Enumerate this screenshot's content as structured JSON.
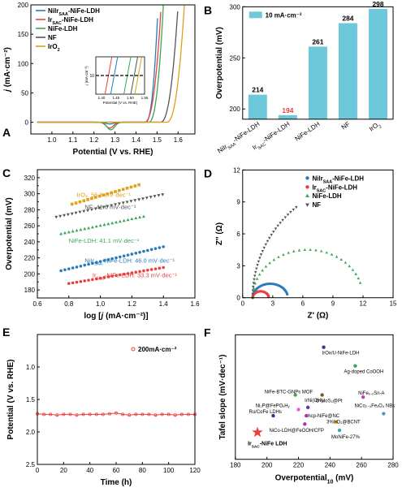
{
  "panel_letters": {
    "a": "A",
    "b": "B",
    "c": "C",
    "d": "D",
    "e": "E",
    "f": "F"
  },
  "chart_data": [
    {
      "id": "A",
      "type": "line",
      "xlabel": "Potential (V vs. RHE)",
      "ylabel": {
        "italic": "j",
        "unit": " (mA·cm⁻²)"
      },
      "xlim": [
        0.9,
        1.68
      ],
      "ylim": [
        -20,
        200
      ],
      "xticks": [
        1.0,
        1.1,
        1.2,
        1.3,
        1.4,
        1.5,
        1.6
      ],
      "yticks": [
        0,
        50,
        100,
        150,
        200
      ],
      "legend_position": "top-left",
      "series": [
        {
          "name": {
            "base": "NiIr",
            "sub": "SAA",
            "rest": "-NiFe-LDH"
          },
          "color": "#2a7ab8",
          "onset": 1.445,
          "x_end": 1.505,
          "dip": {
            "x": 1.275,
            "y": -3
          }
        },
        {
          "name": {
            "base": "Ir",
            "sub": "SAC",
            "rest": "-NiFe-LDH"
          },
          "color": "#e8413d",
          "onset": 1.44,
          "x_end": 1.52,
          "dip": {
            "x": 1.275,
            "y": -10
          }
        },
        {
          "name": {
            "base": "NiFe-LDH",
            "sub": "",
            "rest": ""
          },
          "color": "#3aa655",
          "onset": 1.46,
          "x_end": 1.53,
          "dip": {
            "x": 1.28,
            "y": -13
          }
        },
        {
          "name": {
            "base": "NF",
            "sub": "",
            "rest": ""
          },
          "color": "#555555",
          "onset": 1.515,
          "x_end": 1.6,
          "dip": null
        },
        {
          "name": {
            "base": "IrO",
            "sub": "2",
            "rest": ""
          },
          "color": "#e0a018",
          "onset": 1.545,
          "x_end": 1.63,
          "dip": null
        }
      ],
      "inset": {
        "xlabel": "Potential (V vs. RHE)",
        "ylabel": {
          "italic": "j",
          "unit": " (mA·cm⁻²)"
        },
        "xlim": [
          1.38,
          1.55
        ],
        "ylim": [
          0,
          20
        ],
        "xticks": [
          1.4,
          1.45,
          1.5,
          1.55
        ],
        "xtick_labels": [
          "1.40",
          "1.45",
          "1.50",
          "1.55"
        ],
        "ytick": 10,
        "dashed_level": 10,
        "crossings": [
          1.444,
          1.424,
          1.49,
          1.514,
          1.528
        ]
      }
    },
    {
      "id": "B",
      "type": "bar",
      "ylabel": "Overpotential (mV)",
      "ylim": [
        190,
        300
      ],
      "yticks": [
        200,
        250,
        300
      ],
      "legend": "10 mA·cm⁻²",
      "bar_color": "#6ec8dc",
      "categories": [
        {
          "base": "NiIr",
          "sub": "SAA",
          "rest": "-NiFe-LDH"
        },
        {
          "base": "Ir",
          "sub": "SAC",
          "rest": "-NiFe-LDH"
        },
        {
          "base": "NiFe-LDH",
          "sub": "",
          "rest": ""
        },
        {
          "base": "NF",
          "sub": "",
          "rest": ""
        },
        {
          "base": "IrO",
          "sub": "2",
          "rest": ""
        }
      ],
      "values": [
        214,
        194,
        261,
        284,
        298
      ],
      "value_labels": [
        "214",
        "194",
        "261",
        "284",
        "298"
      ],
      "highlight_index": 1,
      "highlight_color": "#e8413d"
    },
    {
      "id": "C",
      "type": "scatter",
      "xlabel": {
        "pre": "log [",
        "italic": "j",
        "post": " (mA·cm⁻²)]"
      },
      "ylabel": "Overpotential (mV)",
      "xlim": [
        0.6,
        1.6
      ],
      "ylim": [
        170,
        330
      ],
      "xticks": [
        0.6,
        0.8,
        1.0,
        1.2,
        1.4,
        1.6
      ],
      "yticks": [
        180,
        190,
        200,
        210,
        220,
        230,
        240,
        250,
        260,
        270,
        280,
        290,
        300,
        310,
        320,
        330
      ],
      "ytick_labels": [
        0,
        1,
        0,
        1,
        0,
        1,
        0,
        1,
        0,
        1,
        0,
        1,
        0,
        1,
        0,
        1
      ],
      "series": [
        {
          "name": "IrO₂",
          "annotation": "IrO₂: 56.8 mV·dec⁻¹",
          "color": "#e0a018",
          "marker": "square",
          "x_start": 0.82,
          "x_end": 1.25,
          "y_start": 287,
          "slope": 56.8,
          "label_x": 0.85,
          "label_y": 296
        },
        {
          "name": "NF",
          "annotation": "NF: 41.6 mV·dec⁻¹",
          "color": "#555555",
          "marker": "triangle-down",
          "x_start": 0.72,
          "x_end": 1.4,
          "y_start": 271,
          "slope": 41.6,
          "label_x": 0.9,
          "label_y": 281
        },
        {
          "name": "NiFe-LDH",
          "annotation": "NiFe-LDH: 41.1 mV·dec⁻¹",
          "color": "#3aa655",
          "marker": "triangle",
          "x_start": 0.75,
          "x_end": 1.28,
          "y_start": 250,
          "slope": 41.1,
          "label_x": 0.8,
          "label_y": 239
        },
        {
          "name": "NiIr",
          "annotation": {
            "base": "NiIr",
            "sub": "SAA",
            "rest": "-NiFe-LDH: 46.0 mV·dec⁻¹"
          },
          "color": "#2a7ab8",
          "marker": "circle",
          "x_start": 0.75,
          "x_end": 1.4,
          "y_start": 204,
          "slope": 46.0,
          "label_x": 0.9,
          "label_y": 214
        },
        {
          "name": "Ir",
          "annotation": {
            "base": "Ir",
            "sub": "SAC",
            "rest": "-NiFe-LDH: 33.3 mV·dec⁻¹"
          },
          "color": "#e8413d",
          "marker": "circle",
          "x_start": 0.8,
          "x_end": 1.42,
          "y_start": 188,
          "slope": 33.3,
          "label_x": 0.95,
          "label_y": 196
        }
      ]
    },
    {
      "id": "D",
      "type": "scatter",
      "xlabel": "Z' (Ω)",
      "ylabel": "Z'' (Ω)",
      "xlim": [
        0,
        15
      ],
      "ylim": [
        0,
        12
      ],
      "xticks": [
        0,
        3,
        6,
        9,
        12,
        15
      ],
      "yticks": [
        0,
        3,
        6,
        9,
        12
      ],
      "legend_position": "top-right",
      "series": [
        {
          "name": {
            "base": "NiIr",
            "sub": "SAA",
            "rest": "-NiFe-LDH"
          },
          "color": "#2a7ab8",
          "marker": "circle",
          "arc": {
            "r0": 1.0,
            "dia": 3.5,
            "frac": 0.92,
            "h_scale": 0.75
          }
        },
        {
          "name": {
            "base": "Ir",
            "sub": "SAC",
            "rest": "-NiFe-LDH"
          },
          "color": "#e8413d",
          "marker": "circle",
          "arc": {
            "r0": 1.0,
            "dia": 1.6,
            "frac": 0.95,
            "h_scale": 0.75
          }
        },
        {
          "name": {
            "base": "NiFe-LDH",
            "sub": "",
            "rest": ""
          },
          "color": "#3aa655",
          "marker": "triangle",
          "arc": {
            "r0": 1.0,
            "dia": 11.0,
            "frac": 0.9,
            "h_scale": 0.82
          }
        },
        {
          "name": {
            "base": "NF",
            "sub": "",
            "rest": ""
          },
          "color": "#555555",
          "marker": "triangle-down",
          "arc": {
            "r0": 1.0,
            "dia": 24.0,
            "frac": 0.28,
            "h_scale": 0.92
          }
        }
      ]
    },
    {
      "id": "E",
      "type": "line",
      "xlabel": "Time (h)",
      "ylabel": "Potential (V vs. RHE)",
      "xlim": [
        0,
        120
      ],
      "ylim": [
        2.5,
        0.5
      ],
      "y_inverted": true,
      "xticks": [
        0,
        20,
        40,
        60,
        80,
        100,
        120
      ],
      "yticks": [
        1.0,
        1.5,
        2.0,
        2.5
      ],
      "ytick_labels": [
        "1.0",
        "1.5",
        "2.0",
        "2.5"
      ],
      "legend": "200mA·cm⁻²",
      "color": "#e8413d",
      "x": [
        0,
        5,
        10,
        15,
        20,
        25,
        30,
        35,
        40,
        45,
        50,
        55,
        60,
        65,
        70,
        75,
        80,
        85,
        90,
        95,
        100,
        105,
        110,
        115,
        120
      ],
      "y": [
        1.72,
        1.73,
        1.73,
        1.74,
        1.73,
        1.73,
        1.74,
        1.73,
        1.73,
        1.73,
        1.73,
        1.72,
        1.71,
        1.73,
        1.74,
        1.73,
        1.73,
        1.73,
        1.74,
        1.73,
        1.73,
        1.74,
        1.73,
        1.73,
        1.73
      ]
    },
    {
      "id": "F",
      "type": "scatter",
      "xlabel": {
        "pre": "Overpotential",
        "sub": "10",
        "post": " (mV)"
      },
      "ylabel": "Tafel slope (mV·dec⁻¹)",
      "xlim": [
        180,
        280
      ],
      "ylim": [
        20,
        80
      ],
      "xticks": [
        180,
        200,
        220,
        240,
        260,
        280
      ],
      "points": [
        {
          "label": "IrOx/U-NiFe-LDH",
          "x": 236,
          "y": 74,
          "color": "#333399",
          "dx": -2,
          "dy": 9
        },
        {
          "label": "Ag-doped CoOOH",
          "x": 256,
          "y": 65,
          "color": "#3aa655",
          "dx": -14,
          "dy": 9
        },
        {
          "label": "NiFe-BTC-GNPs MOF",
          "x": 218,
          "y": 51,
          "color": "#3aa655",
          "dx": -38,
          "dy": -2
        },
        {
          "label": "O-MoS₂@Pt",
          "x": 235,
          "y": 51,
          "color": "#7b5a2a",
          "dx": -8,
          "dy": 9
        },
        {
          "label": "NiFe₀.₂Sn-A",
          "x": 261,
          "y": 50,
          "color": "#cc33cc",
          "dx": -6,
          "dy": -3
        },
        {
          "label": "Ni₂P@FePOₓHᵧ",
          "x": 220,
          "y": 44,
          "color": "#ee55ee",
          "dx": -53,
          "dy": -3
        },
        {
          "label": "IrNi(OH)₂",
          "x": 226,
          "y": 45,
          "color": "#6633aa",
          "dx": -4,
          "dy": -7
        },
        {
          "label": "Ru/CoFe LDHs",
          "x": 204,
          "y": 41,
          "color": "#333399",
          "dx": -30,
          "dy": -3
        },
        {
          "label": "hcp-NiFe@NC",
          "x": 225,
          "y": 41,
          "color": "#aa33aa",
          "dx": 2,
          "dy": 2
        },
        {
          "label": "NiCo₂₋ₓFeₓO₄ NBs",
          "x": 274,
          "y": 42,
          "color": "#4a9ab8",
          "dx": -36,
          "dy": -8
        },
        {
          "label": "3%IrO₂@BCNT",
          "x": 244,
          "y": 38,
          "color": "#e0a018",
          "dx": -12,
          "dy": 2
        },
        {
          "label": "NiCo-LDH@FeOOH/CFP",
          "x": 224,
          "y": 37,
          "color": "#aa33aa",
          "dx": -44,
          "dy": 10
        },
        {
          "label": "MoNiFe-27%",
          "x": 246,
          "y": 34,
          "color": "#3aa8a0",
          "dx": -10,
          "dy": 10
        }
      ],
      "highlight": {
        "label": {
          "base": "Ir",
          "sub": "SAC",
          "rest": "-NiFe LDH"
        },
        "x": 194,
        "y": 33,
        "color": "#e8413d"
      }
    }
  ]
}
